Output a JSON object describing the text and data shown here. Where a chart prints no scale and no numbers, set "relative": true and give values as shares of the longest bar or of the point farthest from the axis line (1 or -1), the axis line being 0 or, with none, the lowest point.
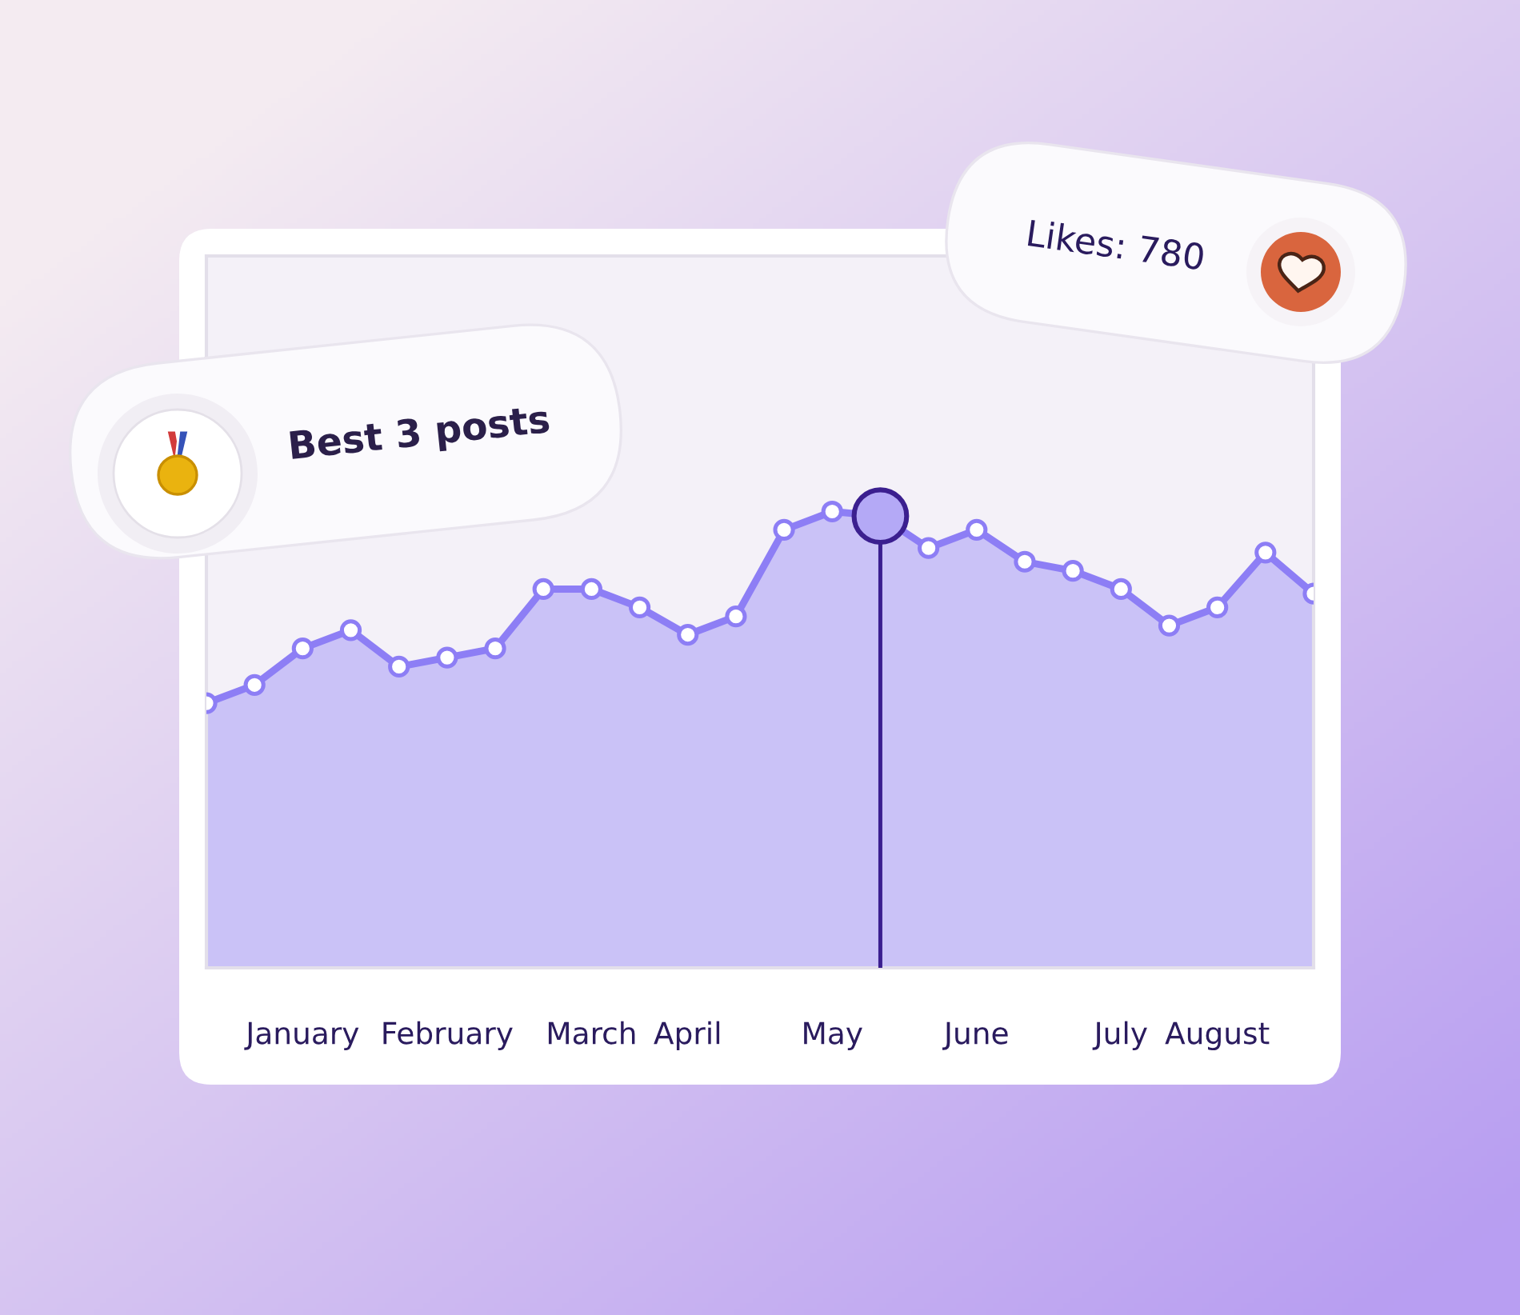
{
  "chart_data": {
    "type": "area",
    "relative": true,
    "categories": [
      null,
      null,
      "January",
      null,
      null,
      "February",
      null,
      null,
      "March",
      null,
      "April",
      null,
      null,
      "May",
      null,
      null,
      "June",
      null,
      null,
      "July",
      null,
      "August",
      null,
      null
    ],
    "series": [
      {
        "color": "#8d7ef5",
        "values": [
          0.58,
          0.62,
          0.7,
          0.74,
          0.66,
          0.68,
          0.7,
          0.83,
          0.83,
          0.79,
          0.73,
          0.77,
          0.96,
          1,
          0.99,
          0.92,
          0.96,
          0.89,
          0.87,
          0.83,
          0.75,
          0.79,
          0.91,
          0.82
        ]
      },
      {
        "type": "lollipop",
        "color": "#3b1f8f",
        "values": [
          null,
          null,
          null,
          null,
          null,
          null,
          null,
          null,
          null,
          null,
          null,
          null,
          null,
          null,
          0.99,
          null,
          null,
          null,
          null,
          null,
          null,
          null,
          null,
          null
        ]
      }
    ],
    "marker": "circle",
    "annotations": [
      "Best 3 posts",
      "Likes: 780"
    ]
  }
}
